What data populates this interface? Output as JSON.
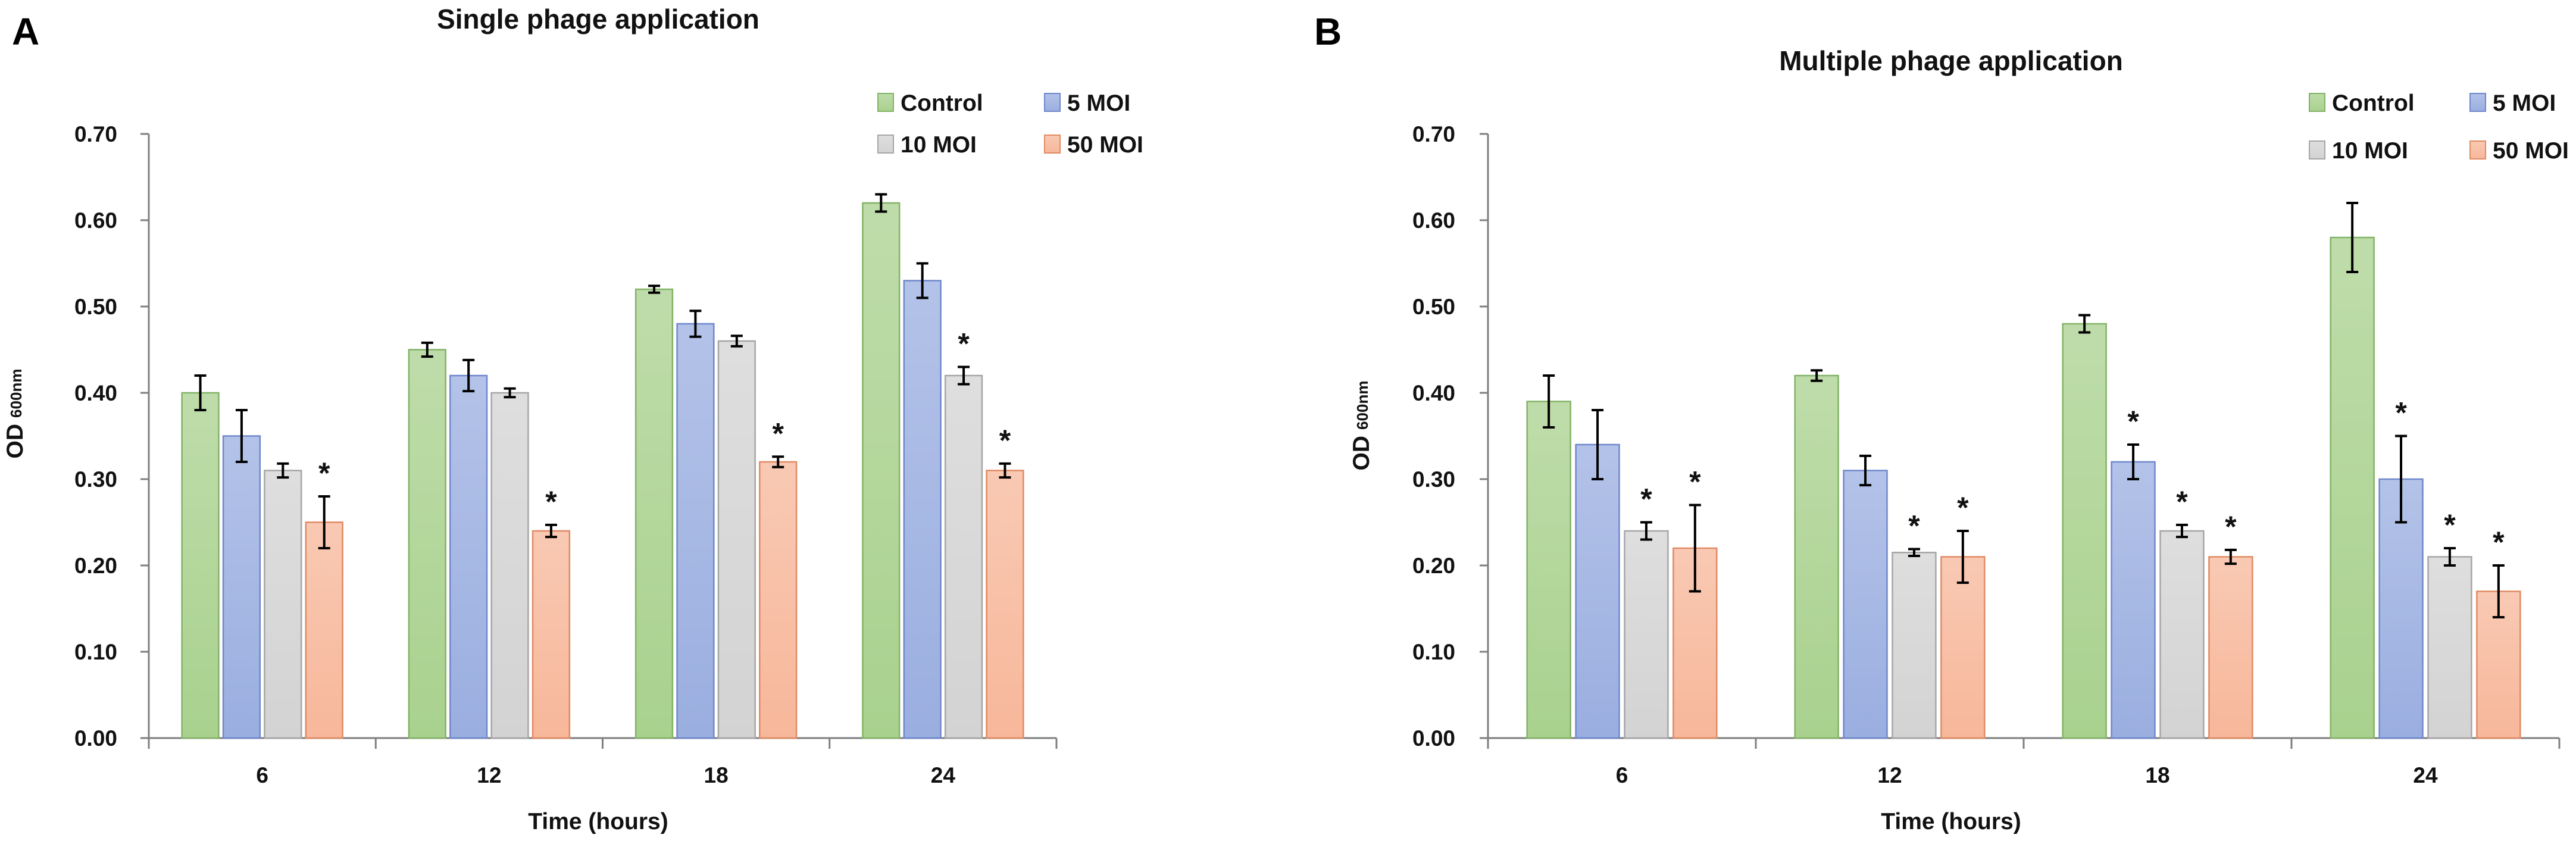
{
  "colors": {
    "Control": {
      "fill": "#a9d18e",
      "stroke": "#82b366"
    },
    "5 MOI": {
      "fill": "#9aaee0",
      "stroke": "#6f88cc"
    },
    "10 MOI": {
      "fill": "#d3d3d3",
      "stroke": "#a6a6a6"
    },
    "50 MOI": {
      "fill": "#f7b79a",
      "stroke": "#e08a64"
    }
  },
  "chart_data": [
    {
      "panel": "A",
      "type": "bar",
      "title": "Single phage application",
      "xlabel": "Time (hours)",
      "ylabel_main": "OD",
      "ylabel_sub": "600nm",
      "ylim": [
        0,
        0.7
      ],
      "yticks": [
        "0.00",
        "0.10",
        "0.20",
        "0.30",
        "0.40",
        "0.50",
        "0.60",
        "0.70"
      ],
      "categories": [
        "6",
        "12",
        "18",
        "24"
      ],
      "legend_position": "top-right",
      "series": [
        {
          "name": "Control",
          "values": [
            0.4,
            0.45,
            0.52,
            0.62
          ],
          "errors": [
            0.02,
            0.008,
            0.004,
            0.01
          ],
          "significant": [
            false,
            false,
            false,
            false
          ]
        },
        {
          "name": "5 MOI",
          "values": [
            0.35,
            0.42,
            0.48,
            0.53
          ],
          "errors": [
            0.03,
            0.018,
            0.015,
            0.02
          ],
          "significant": [
            false,
            false,
            false,
            false
          ]
        },
        {
          "name": "10 MOI",
          "values": [
            0.31,
            0.4,
            0.46,
            0.42
          ],
          "errors": [
            0.008,
            0.005,
            0.006,
            0.01
          ],
          "significant": [
            false,
            false,
            false,
            true
          ]
        },
        {
          "name": "50 MOI",
          "values": [
            0.25,
            0.24,
            0.32,
            0.31
          ],
          "errors": [
            0.03,
            0.007,
            0.006,
            0.008
          ],
          "significant": [
            true,
            true,
            true,
            true
          ]
        }
      ],
      "annotation_symbol": "*"
    },
    {
      "panel": "B",
      "type": "bar",
      "title": "Multiple phage application",
      "xlabel": "Time (hours)",
      "ylabel_main": "OD",
      "ylabel_sub": "600nm",
      "ylim": [
        0,
        0.7
      ],
      "yticks": [
        "0.00",
        "0.10",
        "0.20",
        "0.30",
        "0.40",
        "0.50",
        "0.60",
        "0.70"
      ],
      "categories": [
        "6",
        "12",
        "18",
        "24"
      ],
      "legend_position": "top-right",
      "series": [
        {
          "name": "Control",
          "values": [
            0.39,
            0.42,
            0.48,
            0.58
          ],
          "errors": [
            0.03,
            0.006,
            0.01,
            0.04
          ],
          "significant": [
            false,
            false,
            false,
            false
          ]
        },
        {
          "name": "5 MOI",
          "values": [
            0.34,
            0.31,
            0.32,
            0.3
          ],
          "errors": [
            0.04,
            0.017,
            0.02,
            0.05
          ],
          "significant": [
            false,
            false,
            true,
            true
          ]
        },
        {
          "name": "10 MOI",
          "values": [
            0.24,
            0.215,
            0.24,
            0.21
          ],
          "errors": [
            0.01,
            0.004,
            0.007,
            0.01
          ],
          "significant": [
            true,
            true,
            true,
            true
          ]
        },
        {
          "name": "50 MOI",
          "values": [
            0.22,
            0.21,
            0.21,
            0.17
          ],
          "errors": [
            0.05,
            0.03,
            0.008,
            0.03
          ],
          "significant": [
            true,
            true,
            true,
            true
          ]
        }
      ],
      "annotation_symbol": "*"
    }
  ]
}
